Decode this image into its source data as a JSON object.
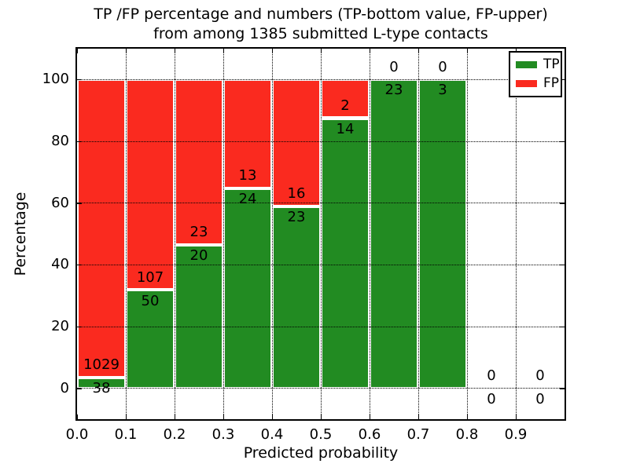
{
  "chart_data": {
    "type": "bar",
    "stacked": true,
    "title_line1": "TP /FP percentage and numbers (TP-bottom value, FP-upper)",
    "title_line2": "from among 1385 submitted L-type contacts",
    "xlabel": "Predicted probability",
    "ylabel": "Percentage",
    "total_submitted": 1385,
    "xlim": [
      0.0,
      1.0
    ],
    "ylim": [
      -10,
      110
    ],
    "bin_width": 0.1,
    "xticks": [
      "0.0",
      "0.1",
      "0.2",
      "0.3",
      "0.4",
      "0.5",
      "0.6",
      "0.7",
      "0.8",
      "0.9"
    ],
    "yticks": [
      "0",
      "20",
      "40",
      "60",
      "80",
      "100"
    ],
    "grid": "dotted",
    "legend_position": "upper right",
    "series": [
      {
        "name": "TP",
        "color": "#228B22"
      },
      {
        "name": "FP",
        "color": "#FA2A1F"
      }
    ],
    "bins": [
      {
        "range": "0.0-0.1",
        "x_start": 0.0,
        "tp": 38,
        "fp": 1029,
        "tp_percent": 3.56
      },
      {
        "range": "0.1-0.2",
        "x_start": 0.1,
        "tp": 50,
        "fp": 107,
        "tp_percent": 31.85
      },
      {
        "range": "0.2-0.3",
        "x_start": 0.2,
        "tp": 20,
        "fp": 23,
        "tp_percent": 46.51
      },
      {
        "range": "0.3-0.4",
        "x_start": 0.3,
        "tp": 24,
        "fp": 13,
        "tp_percent": 64.86
      },
      {
        "range": "0.4-0.5",
        "x_start": 0.4,
        "tp": 23,
        "fp": 16,
        "tp_percent": 58.97
      },
      {
        "range": "0.5-0.6",
        "x_start": 0.5,
        "tp": 14,
        "fp": 2,
        "tp_percent": 87.5
      },
      {
        "range": "0.6-0.7",
        "x_start": 0.6,
        "tp": 23,
        "fp": 0,
        "tp_percent": 100
      },
      {
        "range": "0.7-0.8",
        "x_start": 0.7,
        "tp": 3,
        "fp": 0,
        "tp_percent": 100
      },
      {
        "range": "0.8-0.9",
        "x_start": 0.8,
        "tp": 0,
        "fp": 0,
        "tp_percent": null
      },
      {
        "range": "0.9-1.0",
        "x_start": 0.9,
        "tp": 0,
        "fp": 0,
        "tp_percent": null
      }
    ]
  }
}
